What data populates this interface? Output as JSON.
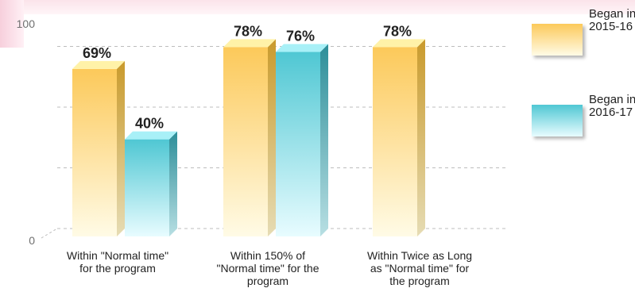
{
  "chart_data": {
    "type": "bar",
    "categories": [
      "Within \"Normal time\" for the program",
      "Within 150% of \"Normal time\" for the program",
      "Within Twice as Long as \"Normal time\" for the program"
    ],
    "series": [
      {
        "name": "Began in 2015-16",
        "values": [
          69,
          78,
          78
        ],
        "labels": [
          "69%",
          "78%",
          "78%"
        ]
      },
      {
        "name": "Began in 2016-17",
        "values": [
          40,
          76,
          null
        ],
        "labels": [
          "40%",
          "76%",
          ""
        ]
      }
    ],
    "yticks": [
      "0",
      "100"
    ],
    "ylim": [
      0,
      100
    ],
    "title": "",
    "xlabel": "",
    "ylabel": "",
    "grid": "dashed horizontal",
    "legend": "right",
    "colors": {
      "series1_top": "#fcc95a",
      "series1_bottom": "#fffbe6",
      "series2_top": "#4fc7d3",
      "series2_bottom": "#e8fcff",
      "grid": "#bdbdbd",
      "text": "#222222",
      "tick_text": "#6f6f6f"
    }
  },
  "category_lines": [
    [
      "Within \"Normal time\"",
      "for the program"
    ],
    [
      "Within 150% of",
      "\"Normal time\" for the",
      "program"
    ],
    [
      "Within Twice as Long",
      "as \"Normal time\" for",
      "the program"
    ]
  ],
  "legend": {
    "items": [
      {
        "label": "Began in 2015-16"
      },
      {
        "label": "Began in 2016-17"
      }
    ]
  }
}
